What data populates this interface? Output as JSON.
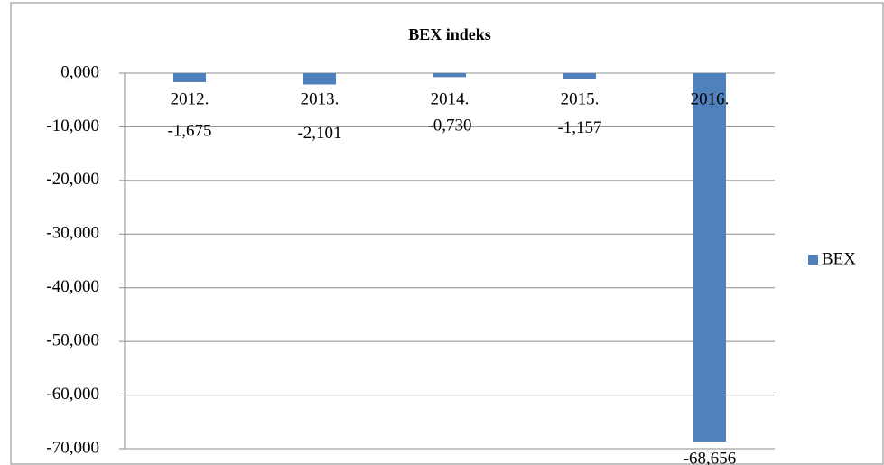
{
  "chart_data": {
    "type": "bar",
    "title": "BEX indeks",
    "categories": [
      "2012.",
      "2013.",
      "2014.",
      "2015.",
      "2016."
    ],
    "series": [
      {
        "name": "BEX",
        "color": "#4f81bd",
        "values": [
          -1.675,
          -2.101,
          -0.73,
          -1.157,
          -68.656
        ],
        "value_labels": [
          "-1,675",
          "-2,101",
          "-0,730",
          "-1,157",
          "-68,656"
        ]
      }
    ],
    "ylim": [
      -70,
      0
    ],
    "yticks": [
      {
        "value": 0,
        "label": "0,000"
      },
      {
        "value": -10,
        "label": "-10,000"
      },
      {
        "value": -20,
        "label": "-20,000"
      },
      {
        "value": -30,
        "label": "-30,000"
      },
      {
        "value": -40,
        "label": "-40,000"
      },
      {
        "value": -50,
        "label": "-50,000"
      },
      {
        "value": -60,
        "label": "-60,000"
      },
      {
        "value": -70,
        "label": "-70,000"
      }
    ],
    "grid": true,
    "legend": "right"
  }
}
